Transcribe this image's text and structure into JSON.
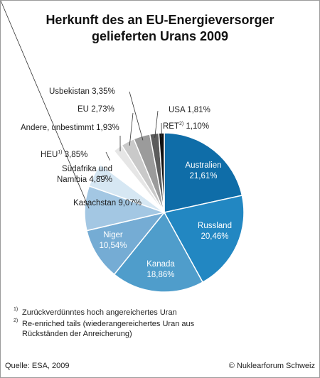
{
  "chart_data": {
    "type": "pie",
    "title": "Herkunft des an EU-Energieversorger gelieferten Urans 2009",
    "categories": [
      "Australien",
      "Russland",
      "Kanada",
      "Niger",
      "Kasachstan",
      "Südafrika und Namibia",
      "HEU",
      "Andere, unbestimmt",
      "EU",
      "Usbekistan",
      "USA",
      "RET"
    ],
    "values": [
      21.61,
      20.46,
      18.86,
      10.54,
      9.07,
      4.89,
      3.85,
      1.93,
      2.73,
      3.35,
      1.81,
      1.1
    ],
    "value_labels": [
      "21,61%",
      "20,46%",
      "18,86%",
      "10,54%",
      "9,07%",
      "4,89%",
      "3,85%",
      "1,93%",
      "2,73%",
      "3,35%",
      "1,81%",
      "1,10%"
    ],
    "colors": [
      "#0f6da8",
      "#2287c2",
      "#4f9dcb",
      "#75acd4",
      "#a3c7e3",
      "#d6e7f3",
      "#ffffff",
      "#e6e6e6",
      "#c9c9c9",
      "#9b9b9b",
      "#5c5c5c",
      "#111111"
    ],
    "footnotes": [
      {
        "marker": "1)",
        "text": "Zurückverdünntes hoch angereichertes Uran"
      },
      {
        "marker": "2)",
        "text": "Re-enriched tails (wiederangereichertes Uran aus Rückständen der Anreicherung)"
      }
    ],
    "source": "Quelle: ESA, 2009",
    "credit": "© Nuklearforum Schweiz"
  }
}
